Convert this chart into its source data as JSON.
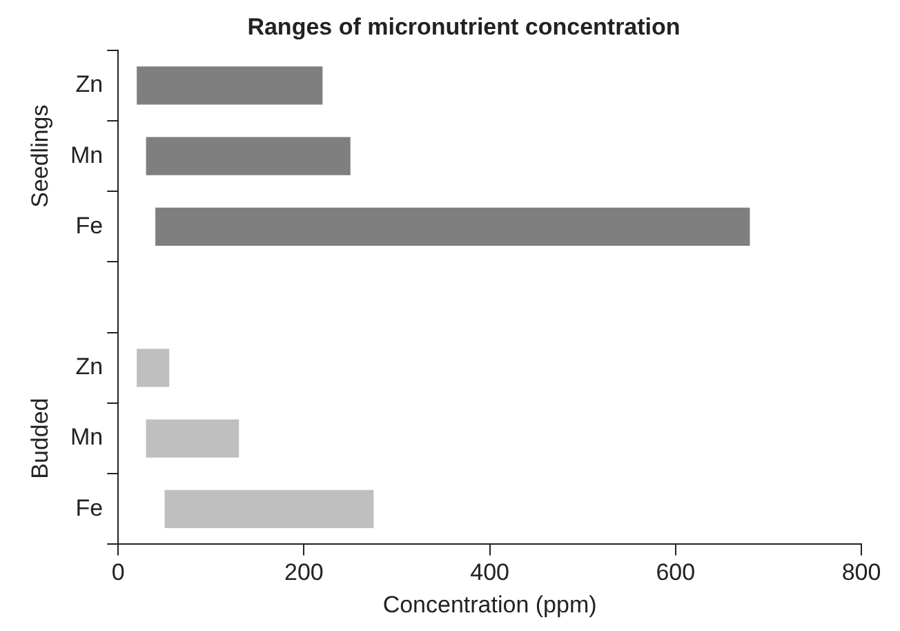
{
  "chart_data": {
    "type": "bar",
    "orientation": "horizontal",
    "title": "Ranges of micronutrient concentration",
    "xlabel": "Concentration (ppm)",
    "categories": [
      "Zn",
      "Mn",
      "Fe",
      null,
      "Zn",
      "Mn",
      "Fe"
    ],
    "base": [
      20,
      30,
      40,
      null,
      20,
      30,
      50
    ],
    "values": [
      200,
      220,
      640,
      null,
      35,
      100,
      225
    ],
    "colors": [
      "#7f7f7f",
      "#7f7f7f",
      "#7f7f7f",
      "#7f7f7f",
      "#bfbfbf",
      "#bfbfbf",
      "#bfbfbf"
    ],
    "xlim": [
      0,
      800
    ],
    "xticks": [
      0,
      200,
      400,
      600,
      800
    ],
    "annotations": [
      "Seedlings",
      "Budded"
    ]
  }
}
